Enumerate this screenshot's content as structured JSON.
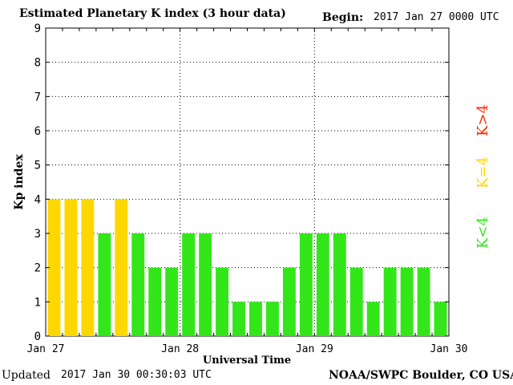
{
  "header": {
    "title": "Estimated Planetary K index (3 hour data)",
    "begin_label": "Begin:",
    "begin_value": "2017 Jan 27 0000 UTC"
  },
  "footer": {
    "updated_label": "Updated",
    "updated_value": "2017 Jan 30 00:30:03 UTC",
    "credit": "NOAA/SWPC Boulder, CO USA"
  },
  "legend": [
    {
      "label": "K>4",
      "color": "#ff2a00"
    },
    {
      "label": "K=4",
      "color": "#ffd700"
    },
    {
      "label": "K<4",
      "color": "#33e619"
    }
  ],
  "chart_data": {
    "type": "bar",
    "title": "Estimated Planetary K index (3 hour data)",
    "xlabel": "Universal Time",
    "ylabel": "Kp index",
    "ylim": [
      0,
      9
    ],
    "yticks": [
      "0",
      "1",
      "2",
      "3",
      "4",
      "5",
      "6",
      "7",
      "8",
      "9"
    ],
    "xticks": [
      "Jan 27",
      "Jan 28",
      "Jan 29",
      "Jan 30"
    ],
    "grid": true,
    "values": [
      4,
      4,
      4,
      3,
      4,
      3,
      2,
      2,
      3,
      3,
      2,
      1,
      1,
      1,
      2,
      3,
      3,
      3,
      2,
      1,
      2,
      2,
      2,
      1
    ],
    "colors": {
      "lt4": "#33e619",
      "eq4": "#ffd700",
      "gt4": "#ff2a00"
    }
  }
}
